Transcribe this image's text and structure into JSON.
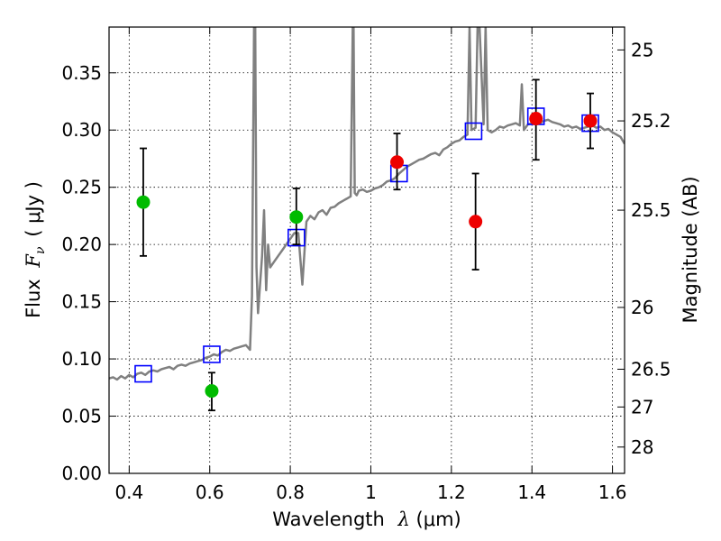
{
  "chart_data": {
    "type": "scatter",
    "xlabel_prefix": "Wavelength",
    "xlabel_symbol": "λ",
    "xlabel_unit": "(μm)",
    "ylabel_prefix": "Flux",
    "ylabel_symbol": "F",
    "ylabel_subscript": "ν",
    "ylabel_unit": "( μJy )",
    "y2label": "Magnitude (AB)",
    "xlim": [
      0.35,
      1.63
    ],
    "ylim": [
      0.0,
      0.39
    ],
    "grid": true,
    "x_ticks": [
      0.4,
      0.6,
      0.8,
      1.0,
      1.2,
      1.4,
      1.6
    ],
    "x_tick_labels": [
      "0.4",
      "0.6",
      "0.8",
      "1",
      "1.2",
      "1.4",
      "1.6"
    ],
    "y_ticks": [
      0.0,
      0.05,
      0.1,
      0.15,
      0.2,
      0.25,
      0.3,
      0.35
    ],
    "y_tick_labels": [
      "0.00",
      "0.05",
      "0.10",
      "0.15",
      "0.20",
      "0.25",
      "0.30",
      "0.35"
    ],
    "y2_ticks": [
      {
        "label": "25",
        "flux": 0.37
      },
      {
        "label": "25.2",
        "flux": 0.308
      },
      {
        "label": "25.5",
        "flux": 0.23
      },
      {
        "label": "26",
        "flux": 0.145
      },
      {
        "label": "26.5",
        "flux": 0.091
      },
      {
        "label": "27",
        "flux": 0.058
      },
      {
        "label": "28",
        "flux": 0.023
      }
    ],
    "colors": {
      "model_line": "#808080",
      "model_points": "#0000ff",
      "detection_green": "#00bb00",
      "detection_red": "#ee0000",
      "error_bar": "#000000"
    },
    "series": [
      {
        "role": "model-spectrum",
        "style": "line",
        "x": [
          0.35,
          0.36,
          0.37,
          0.38,
          0.39,
          0.4,
          0.41,
          0.42,
          0.43,
          0.44,
          0.45,
          0.46,
          0.47,
          0.48,
          0.49,
          0.5,
          0.51,
          0.52,
          0.53,
          0.54,
          0.55,
          0.56,
          0.57,
          0.58,
          0.59,
          0.6,
          0.61,
          0.62,
          0.63,
          0.64,
          0.65,
          0.66,
          0.67,
          0.68,
          0.69,
          0.7,
          0.705,
          0.71,
          0.713,
          0.716,
          0.72,
          0.73,
          0.735,
          0.74,
          0.745,
          0.75,
          0.76,
          0.77,
          0.78,
          0.79,
          0.8,
          0.81,
          0.82,
          0.83,
          0.84,
          0.85,
          0.86,
          0.87,
          0.88,
          0.89,
          0.9,
          0.91,
          0.92,
          0.93,
          0.94,
          0.95,
          0.955,
          0.957,
          0.96,
          0.965,
          0.97,
          0.98,
          0.99,
          1.0,
          1.01,
          1.02,
          1.03,
          1.04,
          1.05,
          1.06,
          1.07,
          1.08,
          1.09,
          1.1,
          1.11,
          1.12,
          1.13,
          1.14,
          1.15,
          1.16,
          1.17,
          1.18,
          1.19,
          1.2,
          1.21,
          1.22,
          1.23,
          1.24,
          1.245,
          1.25,
          1.26,
          1.265,
          1.27,
          1.28,
          1.285,
          1.29,
          1.3,
          1.31,
          1.32,
          1.33,
          1.34,
          1.35,
          1.36,
          1.37,
          1.375,
          1.38,
          1.39,
          1.4,
          1.41,
          1.42,
          1.43,
          1.44,
          1.45,
          1.46,
          1.47,
          1.48,
          1.49,
          1.5,
          1.51,
          1.52,
          1.53,
          1.54,
          1.55,
          1.56,
          1.57,
          1.58,
          1.59,
          1.6,
          1.61,
          1.62,
          1.63
        ],
        "values": [
          0.083,
          0.084,
          0.082,
          0.085,
          0.083,
          0.086,
          0.084,
          0.087,
          0.088,
          0.086,
          0.089,
          0.09,
          0.089,
          0.091,
          0.092,
          0.093,
          0.091,
          0.094,
          0.095,
          0.094,
          0.096,
          0.097,
          0.098,
          0.099,
          0.101,
          0.102,
          0.104,
          0.103,
          0.106,
          0.108,
          0.107,
          0.109,
          0.11,
          0.111,
          0.112,
          0.108,
          0.155,
          0.39,
          0.39,
          0.18,
          0.14,
          0.19,
          0.23,
          0.16,
          0.2,
          0.18,
          0.185,
          0.19,
          0.195,
          0.2,
          0.205,
          0.21,
          0.21,
          0.165,
          0.22,
          0.225,
          0.222,
          0.228,
          0.23,
          0.226,
          0.232,
          0.233,
          0.236,
          0.238,
          0.24,
          0.242,
          0.39,
          0.39,
          0.245,
          0.243,
          0.247,
          0.248,
          0.246,
          0.247,
          0.249,
          0.25,
          0.252,
          0.255,
          0.256,
          0.258,
          0.262,
          0.265,
          0.268,
          0.27,
          0.272,
          0.274,
          0.275,
          0.277,
          0.279,
          0.28,
          0.278,
          0.283,
          0.285,
          0.288,
          0.29,
          0.291,
          0.294,
          0.296,
          0.39,
          0.3,
          0.302,
          0.39,
          0.39,
          0.305,
          0.39,
          0.3,
          0.298,
          0.3,
          0.303,
          0.302,
          0.304,
          0.305,
          0.306,
          0.304,
          0.34,
          0.3,
          0.305,
          0.306,
          0.307,
          0.306,
          0.308,
          0.309,
          0.307,
          0.306,
          0.305,
          0.303,
          0.304,
          0.302,
          0.303,
          0.301,
          0.302,
          0.303,
          0.304,
          0.302,
          0.303,
          0.3,
          0.301,
          0.298,
          0.296,
          0.294,
          0.288
        ]
      },
      {
        "role": "model-photometry",
        "style": "open-square",
        "x": [
          0.435,
          0.605,
          0.815,
          1.07,
          1.255,
          1.41,
          1.545
        ],
        "values": [
          0.087,
          0.104,
          0.206,
          0.262,
          0.299,
          0.312,
          0.306
        ]
      },
      {
        "role": "observed-green",
        "style": "filled-circle",
        "x": [
          0.435,
          0.605,
          0.815
        ],
        "values": [
          0.237,
          0.072,
          0.224
        ],
        "err_low": [
          0.19,
          0.055,
          0.2
        ],
        "err_high": [
          0.284,
          0.088,
          0.249
        ]
      },
      {
        "role": "observed-red",
        "style": "filled-circle",
        "x": [
          1.065,
          1.26,
          1.41,
          1.545
        ],
        "values": [
          0.272,
          0.22,
          0.31,
          0.308
        ],
        "err_low": [
          0.248,
          0.178,
          0.274,
          0.284
        ],
        "err_high": [
          0.297,
          0.262,
          0.344,
          0.332
        ]
      }
    ]
  }
}
